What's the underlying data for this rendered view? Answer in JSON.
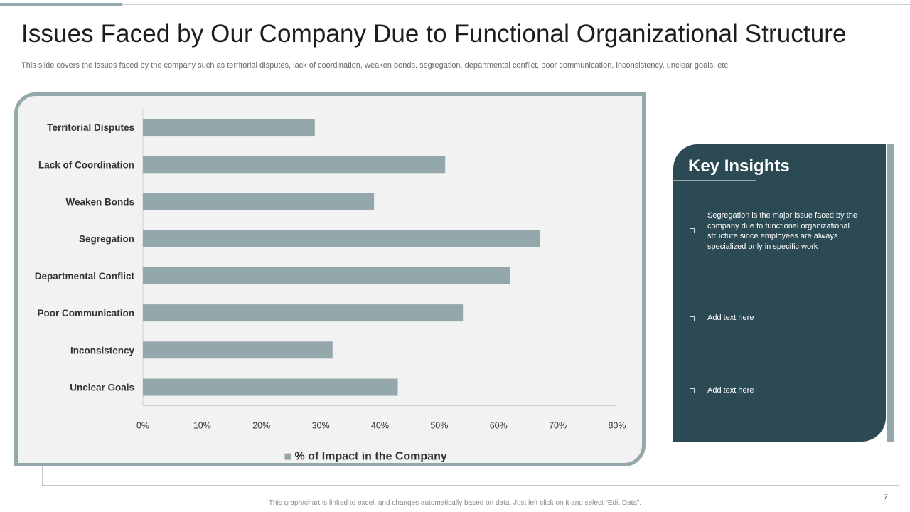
{
  "header": {
    "title": "Issues Faced by Our Company Due to Functional Organizational Structure",
    "subtitle": "This slide covers the issues faced by the company such as territorial disputes, lack of coordination, weaken bonds, segregation, departmental conflict, poor communication, inconsistency, unclear goals, etc."
  },
  "chart_data": {
    "type": "bar",
    "orientation": "horizontal",
    "categories": [
      "Territorial Disputes",
      "Lack of Coordination",
      "Weaken Bonds",
      "Segregation",
      "Departmental Conflict",
      "Poor Communication",
      "Inconsistency",
      "Unclear Goals"
    ],
    "series": [
      {
        "name": "% of Impact in the Company",
        "values": [
          29,
          51,
          39,
          67,
          62,
          54,
          32,
          43
        ]
      }
    ],
    "xlim": [
      0,
      80
    ],
    "xticks": [
      "0%",
      "10%",
      "20%",
      "30%",
      "40%",
      "50%",
      "60%",
      "70%",
      "80%"
    ],
    "legend": "bottom",
    "grid": false,
    "colors": {
      "bar": "#94a8ac",
      "axis": "#d0d0d0",
      "text": "#333333"
    }
  },
  "insights": {
    "title": "Key Insights",
    "items": [
      "Segregation is the major issue faced by the company due to functional organizational structure since employees are always specialized only in specific work",
      "Add text here",
      "Add text here"
    ]
  },
  "footer": {
    "note": "This graph/chart is linked to excel, and changes automatically based on data. Just left click on it and select “Edit Data”.",
    "page_number": "7"
  }
}
